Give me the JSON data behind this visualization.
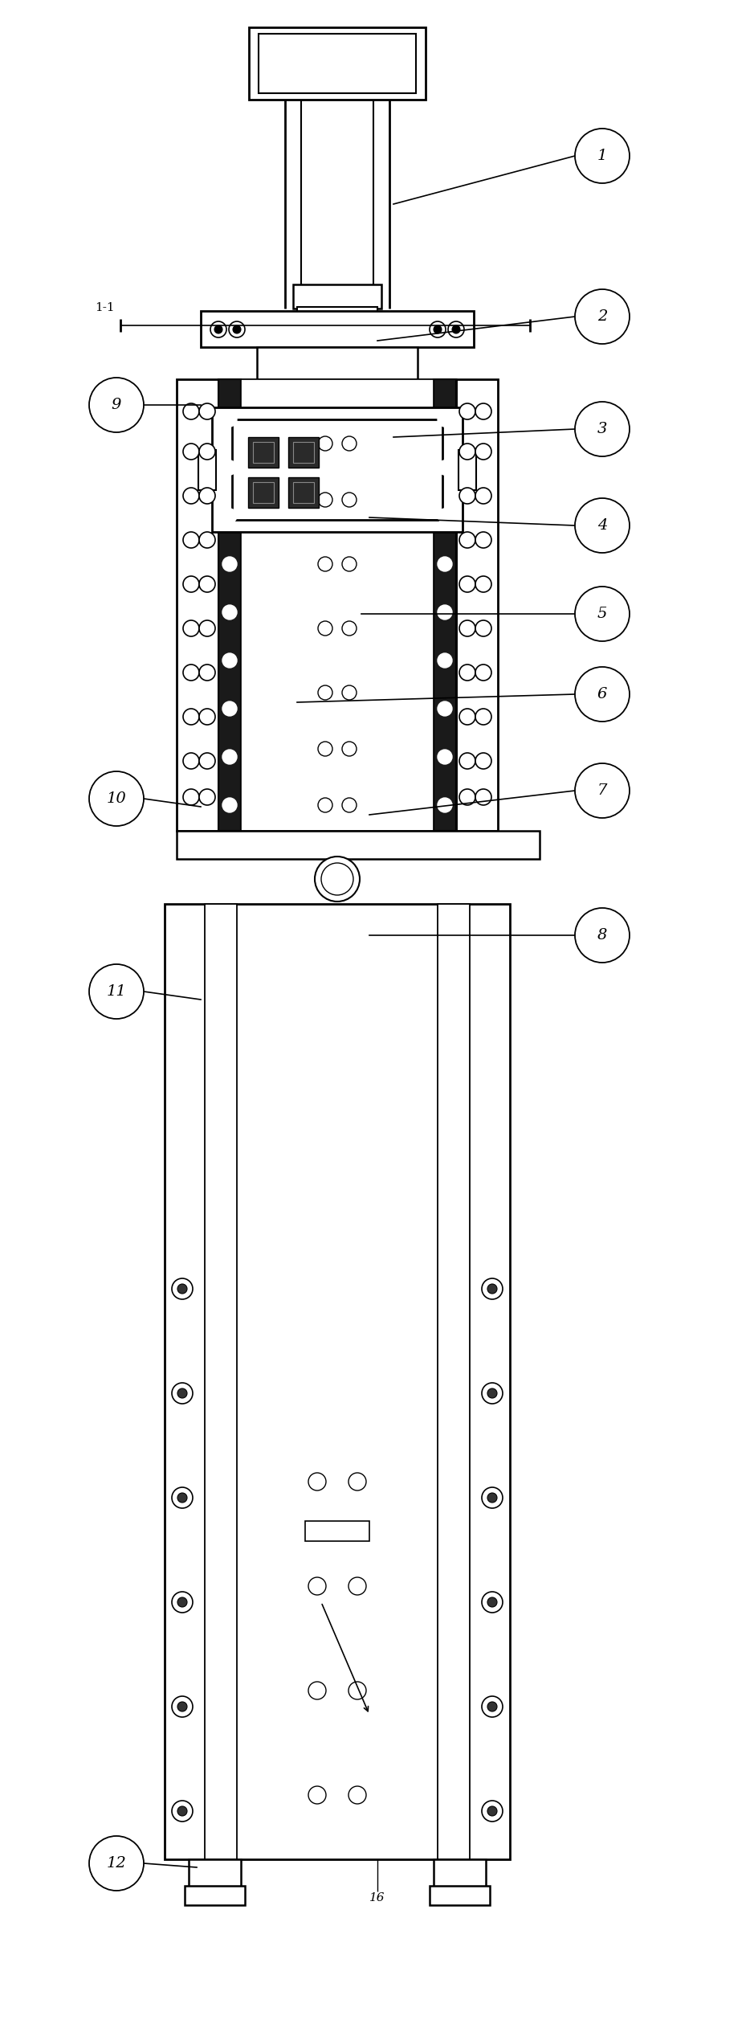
{
  "bg_color": "#ffffff",
  "line_color": "#000000",
  "fig_width": 9.39,
  "fig_height": 25.14,
  "dpi": 100
}
